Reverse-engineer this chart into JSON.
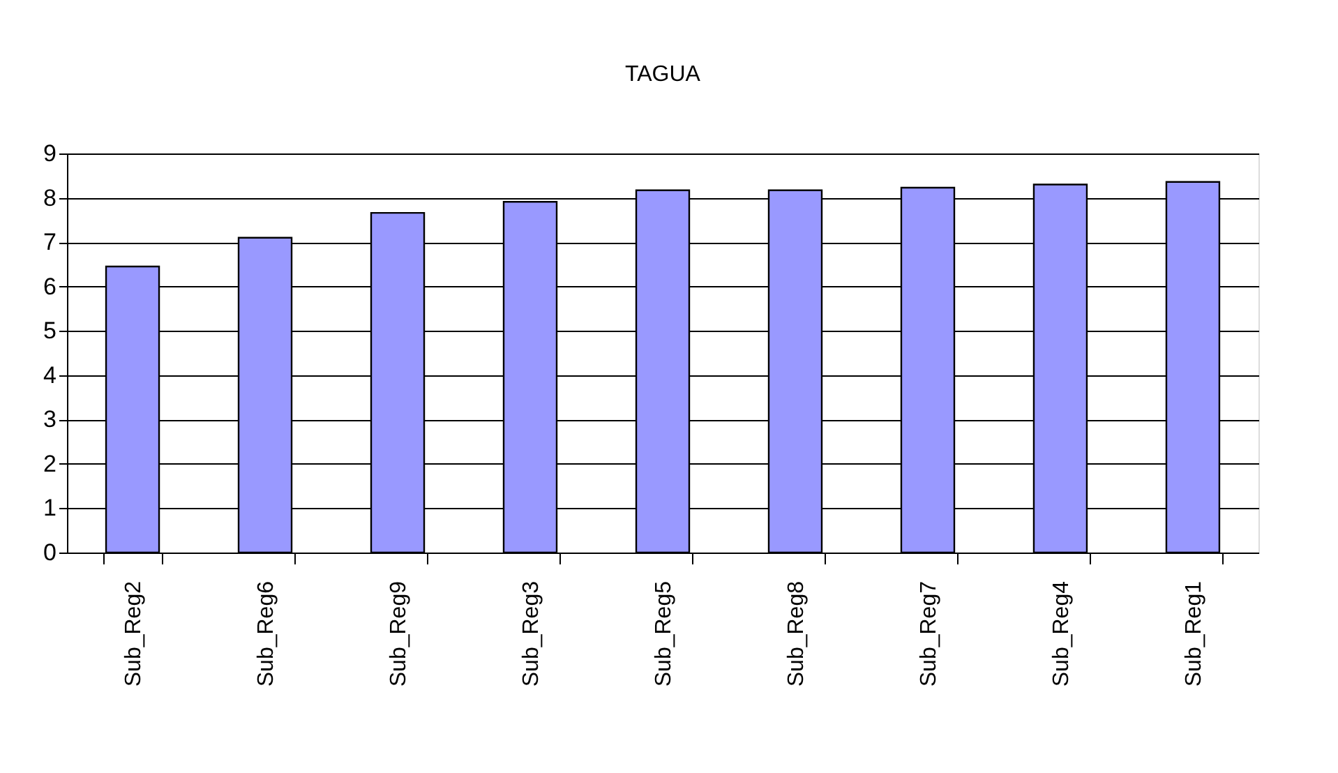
{
  "chart_data": {
    "type": "bar",
    "title": "TAGUA",
    "categories": [
      "Sub_Reg2",
      "Sub_Reg6",
      "Sub_Reg9",
      "Sub_Reg3",
      "Sub_Reg5",
      "Sub_Reg8",
      "Sub_Reg7",
      "Sub_Reg4",
      "Sub_Reg1"
    ],
    "values": [
      6.45,
      7.1,
      7.66,
      7.91,
      8.17,
      8.17,
      8.23,
      8.3,
      8.36
    ],
    "color": "#9999ff",
    "ylim": [
      0,
      9
    ],
    "yticks": [
      0,
      1,
      2,
      3,
      4,
      5,
      6,
      7,
      8,
      9
    ],
    "grid": "y"
  }
}
